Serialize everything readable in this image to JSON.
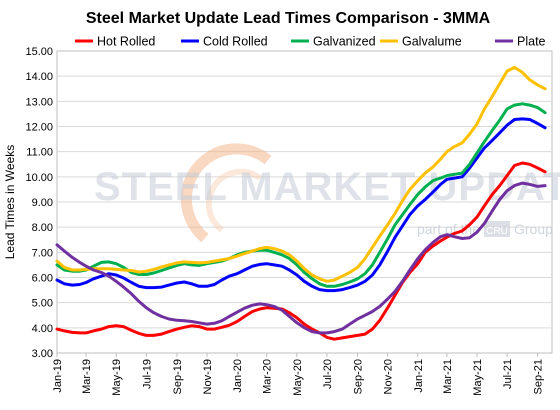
{
  "chart_data": {
    "type": "line",
    "title": "Steel Market Update Lead Times Comparison - 3MMA",
    "ylabel": "Lead Times in Weeks",
    "xlabel": "",
    "ylim": [
      3.0,
      15.0
    ],
    "y_ticks": [
      "3.00",
      "4.00",
      "5.00",
      "6.00",
      "7.00",
      "8.00",
      "9.00",
      "10.00",
      "11.00",
      "12.00",
      "13.00",
      "14.00",
      "15.00"
    ],
    "x_ticks": [
      "Jan-19",
      "Mar-19",
      "May-19",
      "Jul-19",
      "Sep-19",
      "Nov-19",
      "Jan-20",
      "Mar-20",
      "May-20",
      "Jul-20",
      "Sep-20",
      "Nov-20",
      "Jan-21",
      "Mar-21",
      "May-21",
      "Jul-21",
      "Sep-21"
    ],
    "grid": "horizontal",
    "legend_position": "top",
    "watermark": {
      "brand": "STEEL MARKET UPDATE",
      "tagline_prefix": "part of the",
      "tagline_mid": "CRU",
      "tagline_suffix": "Group"
    },
    "x": [
      "2019-01-01",
      "2019-01-16",
      "2019-02-01",
      "2019-02-16",
      "2019-03-01",
      "2019-03-16",
      "2019-04-01",
      "2019-04-16",
      "2019-05-01",
      "2019-05-16",
      "2019-06-01",
      "2019-06-16",
      "2019-07-01",
      "2019-07-16",
      "2019-08-01",
      "2019-08-16",
      "2019-09-01",
      "2019-09-16",
      "2019-10-01",
      "2019-10-16",
      "2019-11-01",
      "2019-11-16",
      "2019-12-01",
      "2019-12-16",
      "2020-01-01",
      "2020-01-16",
      "2020-02-01",
      "2020-02-16",
      "2020-03-01",
      "2020-03-16",
      "2020-04-01",
      "2020-04-16",
      "2020-05-01",
      "2020-05-16",
      "2020-06-01",
      "2020-06-16",
      "2020-07-01",
      "2020-07-16",
      "2020-08-01",
      "2020-08-16",
      "2020-09-01",
      "2020-09-16",
      "2020-10-01",
      "2020-10-16",
      "2020-11-01",
      "2020-11-16",
      "2020-12-01",
      "2020-12-16",
      "2021-01-01",
      "2021-01-16",
      "2021-02-01",
      "2021-02-16",
      "2021-03-01",
      "2021-03-16",
      "2021-04-01",
      "2021-04-16",
      "2021-05-01",
      "2021-05-16",
      "2021-06-01",
      "2021-06-16",
      "2021-07-01",
      "2021-07-16",
      "2021-08-01",
      "2021-08-16",
      "2021-09-01",
      "2021-09-16"
    ],
    "series": [
      {
        "name": "Hot Rolled",
        "color": "#ff0000",
        "values": [
          3.95,
          3.88,
          3.82,
          3.8,
          3.8,
          3.88,
          3.95,
          4.05,
          4.08,
          4.05,
          3.9,
          3.78,
          3.7,
          3.7,
          3.75,
          3.85,
          3.95,
          4.02,
          4.08,
          4.05,
          3.95,
          3.95,
          4.02,
          4.1,
          4.25,
          4.45,
          4.65,
          4.75,
          4.8,
          4.78,
          4.75,
          4.6,
          4.4,
          4.15,
          3.95,
          3.8,
          3.62,
          3.55,
          3.6,
          3.65,
          3.7,
          3.75,
          3.95,
          4.3,
          4.8,
          5.3,
          5.8,
          6.2,
          6.55,
          7.0,
          7.25,
          7.45,
          7.6,
          7.75,
          7.85,
          8.1,
          8.4,
          8.85,
          9.3,
          9.65,
          10.05,
          10.45,
          10.55,
          10.5,
          10.35,
          10.2
        ]
      },
      {
        "name": "Cold Rolled",
        "color": "#0000ff",
        "values": [
          5.9,
          5.75,
          5.7,
          5.72,
          5.8,
          5.95,
          6.05,
          6.15,
          6.1,
          5.98,
          5.8,
          5.65,
          5.6,
          5.6,
          5.62,
          5.7,
          5.78,
          5.82,
          5.75,
          5.65,
          5.65,
          5.72,
          5.9,
          6.05,
          6.15,
          6.3,
          6.45,
          6.52,
          6.55,
          6.5,
          6.45,
          6.3,
          6.1,
          5.85,
          5.65,
          5.52,
          5.48,
          5.48,
          5.52,
          5.6,
          5.7,
          5.85,
          6.1,
          6.5,
          7.05,
          7.6,
          8.05,
          8.5,
          8.85,
          9.1,
          9.4,
          9.7,
          9.9,
          9.95,
          10.0,
          10.35,
          10.75,
          11.15,
          11.45,
          11.75,
          12.05,
          12.28,
          12.3,
          12.28,
          12.12,
          11.95
        ]
      },
      {
        "name": "Galvanized",
        "color": "#00b050",
        "values": [
          6.5,
          6.3,
          6.25,
          6.25,
          6.3,
          6.45,
          6.6,
          6.62,
          6.55,
          6.4,
          6.2,
          6.12,
          6.12,
          6.18,
          6.28,
          6.38,
          6.48,
          6.55,
          6.5,
          6.48,
          6.55,
          6.6,
          6.65,
          6.75,
          6.9,
          7.0,
          7.05,
          7.08,
          7.08,
          7.0,
          6.9,
          6.75,
          6.5,
          6.2,
          5.95,
          5.75,
          5.65,
          5.65,
          5.72,
          5.82,
          5.95,
          6.15,
          6.5,
          7.0,
          7.55,
          8.1,
          8.5,
          8.9,
          9.3,
          9.6,
          9.85,
          9.95,
          10.05,
          10.1,
          10.15,
          10.5,
          10.95,
          11.4,
          11.85,
          12.25,
          12.7,
          12.85,
          12.9,
          12.85,
          12.75,
          12.55
        ]
      },
      {
        "name": "Galvalume",
        "color": "#ffc000",
        "values": [
          6.65,
          6.4,
          6.3,
          6.3,
          6.32,
          6.35,
          6.35,
          6.35,
          6.32,
          6.3,
          6.28,
          6.22,
          6.25,
          6.32,
          6.42,
          6.5,
          6.58,
          6.62,
          6.6,
          6.58,
          6.6,
          6.65,
          6.7,
          6.75,
          6.85,
          6.95,
          7.05,
          7.15,
          7.2,
          7.15,
          7.05,
          6.9,
          6.65,
          6.35,
          6.1,
          5.95,
          5.85,
          5.9,
          6.05,
          6.2,
          6.4,
          6.75,
          7.2,
          7.65,
          8.1,
          8.55,
          9.05,
          9.5,
          9.85,
          10.15,
          10.4,
          10.7,
          11.0,
          11.2,
          11.35,
          11.7,
          12.1,
          12.7,
          13.2,
          13.7,
          14.2,
          14.35,
          14.15,
          13.85,
          13.65,
          13.5
        ]
      },
      {
        "name": "Plate",
        "color": "#7030a0",
        "values": [
          7.3,
          7.05,
          6.8,
          6.6,
          6.45,
          6.3,
          6.2,
          6.05,
          5.85,
          5.62,
          5.35,
          5.05,
          4.8,
          4.6,
          4.45,
          4.35,
          4.3,
          4.28,
          4.25,
          4.2,
          4.15,
          4.18,
          4.28,
          4.45,
          4.62,
          4.78,
          4.9,
          4.95,
          4.92,
          4.85,
          4.7,
          4.45,
          4.2,
          4.0,
          3.85,
          3.8,
          3.8,
          3.85,
          3.95,
          4.15,
          4.35,
          4.5,
          4.65,
          4.85,
          5.15,
          5.45,
          5.85,
          6.3,
          6.75,
          7.1,
          7.4,
          7.62,
          7.7,
          7.62,
          7.55,
          7.58,
          7.8,
          8.15,
          8.65,
          9.1,
          9.45,
          9.65,
          9.75,
          9.7,
          9.62,
          9.65
        ]
      }
    ]
  }
}
